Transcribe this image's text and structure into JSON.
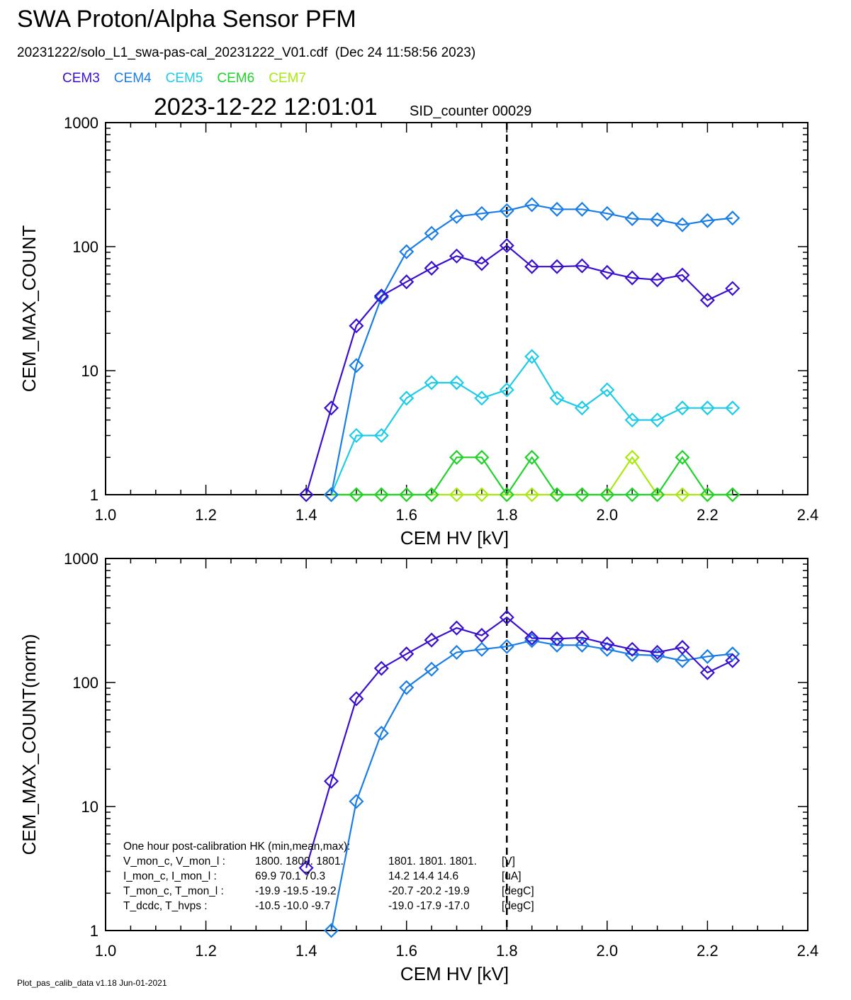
{
  "title": "SWA Proton/Alpha Sensor PFM",
  "file_line": "20231222/solo_L1_swa-pas-cal_20231222_V01.cdf  (Dec 24 11:58:56 2023)",
  "timestamp": "2023-12-22 12:01:01",
  "sid_counter": "SID_counter 00029",
  "footer": "Plot_pas_calib_data v1.18 Jun-01-2021",
  "legend": [
    {
      "name": "CEM3",
      "color": "#3a10d0"
    },
    {
      "name": "CEM4",
      "color": "#1a7ee6"
    },
    {
      "name": "CEM5",
      "color": "#1ecce8"
    },
    {
      "name": "CEM6",
      "color": "#20d22a"
    },
    {
      "name": "CEM7",
      "color": "#a8ea10"
    }
  ],
  "hk": {
    "header": "One hour post-calibration HK (min,mean,max):",
    "rows": [
      {
        "label": "V_mon_c, V_mon_l :",
        "c_vals": "1800.  1800.  1801.",
        "l_vals": "1801.  1801.  1801.",
        "unit": "[V]"
      },
      {
        "label": "I_mon_c,  I_mon_l :",
        "c_vals": "69.9   70.1   70.3",
        "l_vals": "14.2   14.4   14.6",
        "unit": "[uA]"
      },
      {
        "label": "T_mon_c, T_mon_l :",
        "c_vals": "-19.9  -19.5  -19.2",
        "l_vals": "-20.7  -20.2  -19.9",
        "unit": "[degC]"
      },
      {
        "label": "T_dcdc,    T_hvps :",
        "c_vals": "-10.5  -10.0   -9.7",
        "l_vals": "-19.0  -17.9  -17.0",
        "unit": "[degC]"
      }
    ]
  },
  "chart_data": [
    {
      "type": "line",
      "panel": "top",
      "xlabel": "CEM HV [kV]",
      "ylabel": "CEM_MAX_COUNT",
      "xlim": [
        1.0,
        2.4
      ],
      "ylim": [
        1,
        1000
      ],
      "yscale": "log",
      "x_ticks": [
        "1.0",
        "1.2",
        "1.4",
        "1.6",
        "1.8",
        "2.0",
        "2.2",
        "2.4"
      ],
      "y_ticks": [
        "1",
        "10",
        "100",
        "1000"
      ],
      "vline": 1.8,
      "x": [
        1.4,
        1.45,
        1.5,
        1.55,
        1.6,
        1.65,
        1.7,
        1.75,
        1.8,
        1.85,
        1.9,
        1.95,
        2.0,
        2.05,
        2.1,
        2.15,
        2.2,
        2.25
      ],
      "series": [
        {
          "name": "CEM7",
          "color": "#a8ea10",
          "values": [
            null,
            1,
            1,
            1,
            1,
            1,
            1,
            1,
            1,
            1,
            1,
            1,
            1,
            2,
            1,
            1,
            1,
            1
          ]
        },
        {
          "name": "CEM6",
          "color": "#20d22a",
          "values": [
            null,
            1,
            1,
            1,
            1,
            1,
            2,
            2,
            1,
            2,
            1,
            1,
            1,
            1,
            1,
            2,
            1,
            1
          ]
        },
        {
          "name": "CEM5",
          "color": "#1ecce8",
          "values": [
            null,
            1,
            3,
            3,
            6,
            8,
            8,
            6,
            7,
            13,
            6,
            5,
            7,
            4,
            4,
            5,
            5,
            5
          ]
        },
        {
          "name": "CEM4",
          "color": "#1a7ee6",
          "values": [
            null,
            1,
            11,
            39,
            91,
            128,
            175,
            185,
            195,
            218,
            200,
            200,
            185,
            168,
            165,
            150,
            162,
            170
          ]
        },
        {
          "name": "CEM3",
          "color": "#3a10d0",
          "values": [
            1,
            5,
            23,
            40,
            52,
            67,
            84,
            73,
            102,
            69,
            69,
            70,
            62,
            56,
            54,
            59,
            37,
            46
          ]
        }
      ]
    },
    {
      "type": "line",
      "panel": "bottom",
      "xlabel": "CEM HV [kV]",
      "ylabel": "CEM_MAX_COUNT(norm)",
      "xlim": [
        1.0,
        2.4
      ],
      "ylim": [
        1,
        1000
      ],
      "yscale": "log",
      "x_ticks": [
        "1.0",
        "1.2",
        "1.4",
        "1.6",
        "1.8",
        "2.0",
        "2.2",
        "2.4"
      ],
      "y_ticks": [
        "1",
        "10",
        "100",
        "1000"
      ],
      "vline": 1.8,
      "x": [
        1.4,
        1.45,
        1.5,
        1.55,
        1.6,
        1.65,
        1.7,
        1.75,
        1.8,
        1.85,
        1.9,
        1.95,
        2.0,
        2.05,
        2.1,
        2.15,
        2.2,
        2.25
      ],
      "series": [
        {
          "name": "CEM4",
          "color": "#1a7ee6",
          "values": [
            null,
            1,
            11,
            39,
            91,
            128,
            175,
            185,
            195,
            218,
            200,
            200,
            185,
            168,
            165,
            150,
            162,
            170
          ]
        },
        {
          "name": "CEM3",
          "color": "#3a10d0",
          "values": [
            3.2,
            16,
            74,
            130,
            170,
            220,
            275,
            240,
            335,
            228,
            225,
            230,
            205,
            185,
            175,
            192,
            120,
            150
          ]
        }
      ]
    }
  ]
}
